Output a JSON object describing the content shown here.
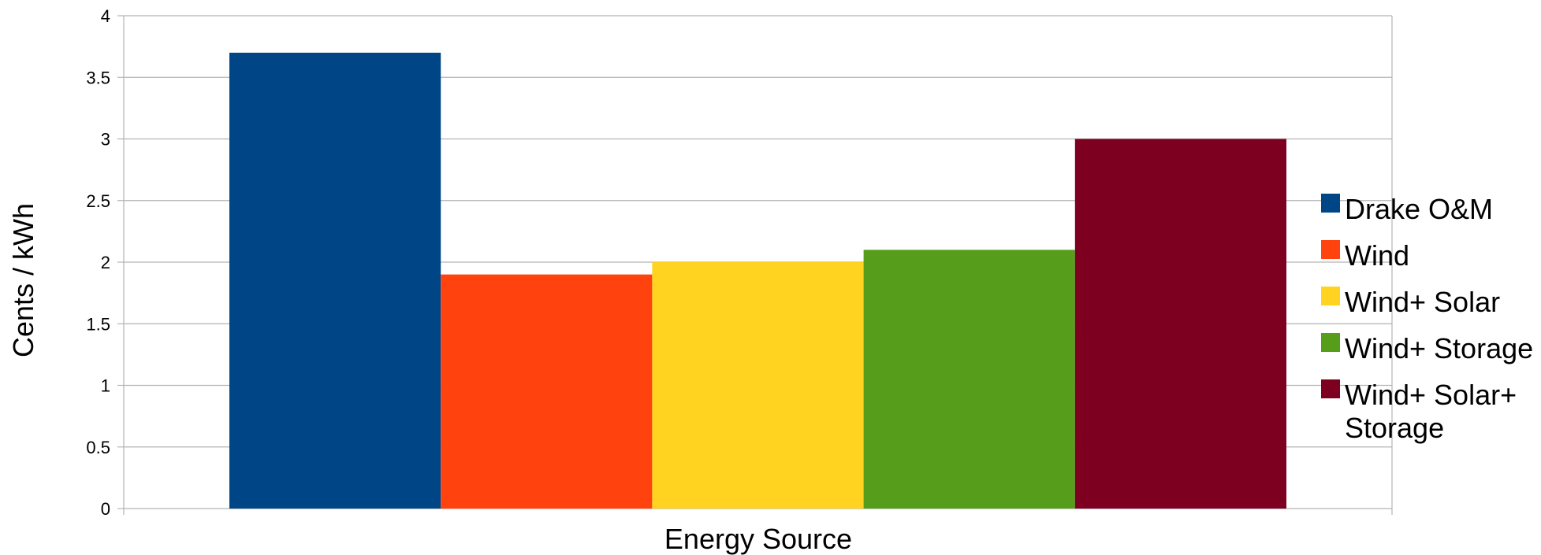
{
  "chart_data": {
    "type": "bar",
    "title": "",
    "xlabel": "Energy Source",
    "ylabel": "Cents / kWh",
    "ylim": [
      0,
      4
    ],
    "yticks": [
      "0",
      "0.5",
      "1",
      "1.5",
      "2",
      "2.5",
      "3",
      "3.5",
      "4"
    ],
    "grid": true,
    "legend_position": "right",
    "series": [
      {
        "name": "Drake O&M",
        "values": [
          3.7
        ],
        "color": "#004586"
      },
      {
        "name": "Wind",
        "values": [
          1.9
        ],
        "color": "#ff420e"
      },
      {
        "name": "Wind+ Solar",
        "values": [
          2.0
        ],
        "color": "#ffd320"
      },
      {
        "name": "Wind+ Storage",
        "values": [
          2.1
        ],
        "color": "#579d1c"
      },
      {
        "name": "Wind+ Solar+ Storage",
        "values": [
          3.0
        ],
        "color": "#7e0021"
      }
    ]
  }
}
